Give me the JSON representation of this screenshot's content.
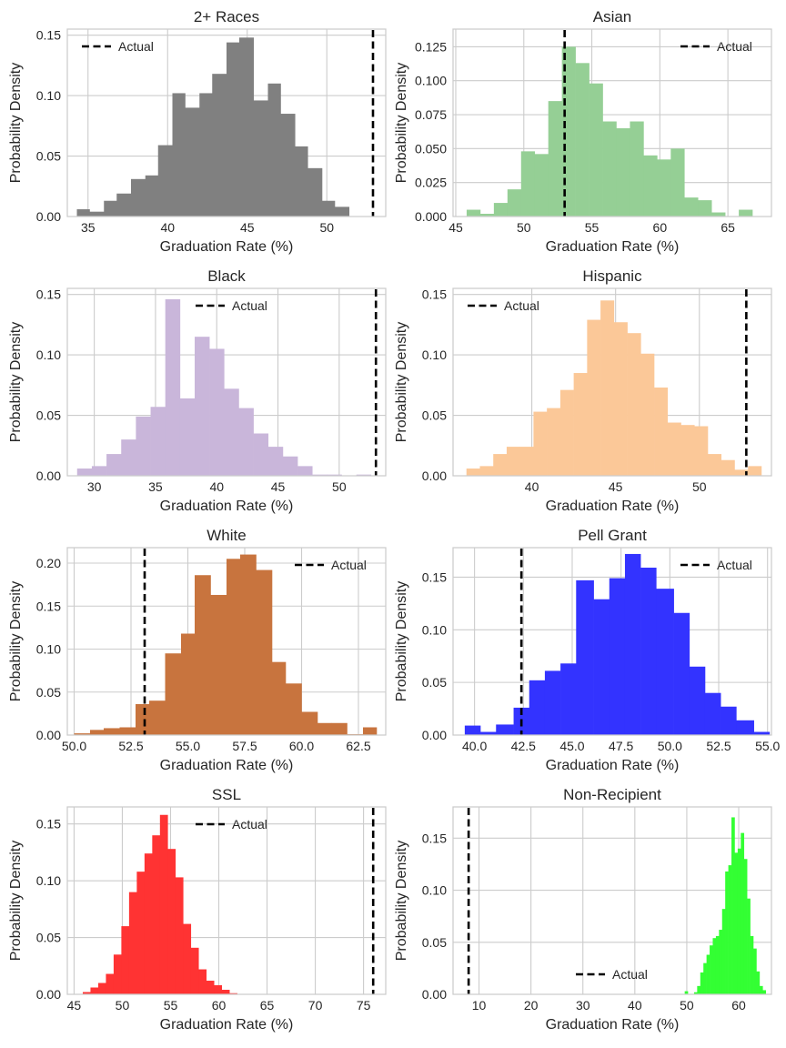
{
  "figure": {
    "legend_label": "Actual"
  },
  "chart_data": [
    {
      "type": "histogram",
      "title": "2+ Races",
      "xlabel": "Graduation Rate (%)",
      "ylabel": "Probability Density",
      "color": "#808080",
      "xlim": [
        33.7,
        53.7
      ],
      "ylim": [
        0,
        0.155
      ],
      "xticks": [
        35,
        40,
        45,
        50
      ],
      "yticks": [
        0.0,
        0.05,
        0.1,
        0.15
      ],
      "ytick_decimals": 2,
      "bins": [
        34.3,
        35.1,
        36.0,
        36.8,
        37.7,
        38.6,
        39.4,
        40.3,
        41.1,
        42.0,
        42.8,
        43.7,
        44.5,
        45.4,
        46.3,
        47.1,
        48.0,
        48.8,
        49.7,
        50.5,
        51.4
      ],
      "density": [
        0.006,
        0.004,
        0.013,
        0.019,
        0.031,
        0.034,
        0.059,
        0.102,
        0.09,
        0.102,
        0.118,
        0.144,
        0.148,
        0.096,
        0.11,
        0.085,
        0.058,
        0.04,
        0.013,
        0.008
      ],
      "actual": 52.9,
      "legend_position": "upper left"
    },
    {
      "type": "histogram",
      "title": "Asian",
      "xlabel": "Graduation Rate (%)",
      "ylabel": "Probability Density",
      "color": "#95cf95",
      "xlim": [
        44.8,
        68.2
      ],
      "ylim": [
        0,
        0.138
      ],
      "xticks": [
        45,
        50,
        55,
        60,
        65
      ],
      "yticks": [
        0.0,
        0.025,
        0.05,
        0.075,
        0.1,
        0.125
      ],
      "ytick_decimals": 3,
      "bins": [
        45.8,
        46.8,
        47.8,
        48.8,
        49.8,
        50.8,
        51.8,
        52.8,
        53.8,
        54.8,
        55.8,
        56.8,
        57.8,
        58.8,
        59.8,
        60.8,
        61.8,
        62.8,
        63.8,
        64.8,
        65.8,
        66.8
      ],
      "density": [
        0.005,
        0.002,
        0.01,
        0.02,
        0.048,
        0.046,
        0.085,
        0.125,
        0.113,
        0.098,
        0.07,
        0.065,
        0.07,
        0.045,
        0.042,
        0.05,
        0.014,
        0.012,
        0.003,
        0.0,
        0.005
      ],
      "actual": 53.0,
      "legend_position": "upper right"
    },
    {
      "type": "histogram",
      "title": "Black",
      "xlabel": "Graduation Rate (%)",
      "ylabel": "Probability Density",
      "color": "#c9b6da",
      "xlim": [
        27.8,
        53.8
      ],
      "ylim": [
        0,
        0.155
      ],
      "xticks": [
        30,
        35,
        40,
        45,
        50
      ],
      "yticks": [
        0.0,
        0.05,
        0.1,
        0.15
      ],
      "ytick_decimals": 2,
      "bins": [
        28.6,
        29.8,
        31.0,
        32.2,
        33.4,
        34.6,
        35.8,
        37.0,
        38.2,
        39.4,
        40.6,
        41.8,
        43.0,
        44.2,
        45.4,
        46.6,
        47.8,
        49.0,
        50.2,
        51.4,
        52.6
      ],
      "density": [
        0.006,
        0.008,
        0.018,
        0.03,
        0.049,
        0.057,
        0.146,
        0.064,
        0.115,
        0.105,
        0.072,
        0.056,
        0.035,
        0.024,
        0.016,
        0.008,
        0.001,
        0.001,
        0.0,
        0.001
      ],
      "actual": 53.0,
      "legend_position": "upper center"
    },
    {
      "type": "histogram",
      "title": "Hispanic",
      "xlabel": "Graduation Rate (%)",
      "ylabel": "Probability Density",
      "color": "#fbc898",
      "xlim": [
        35.3,
        54.3
      ],
      "ylim": [
        0,
        0.155
      ],
      "xticks": [
        40,
        45,
        50
      ],
      "yticks": [
        0.0,
        0.05,
        0.1,
        0.15
      ],
      "ytick_decimals": 2,
      "bins": [
        36.1,
        36.9,
        37.7,
        38.5,
        39.3,
        40.1,
        40.9,
        41.7,
        42.5,
        43.3,
        44.1,
        44.9,
        45.7,
        46.5,
        47.3,
        48.1,
        48.9,
        49.7,
        50.5,
        51.3,
        52.1,
        52.9,
        53.7
      ],
      "density": [
        0.006,
        0.008,
        0.018,
        0.024,
        0.024,
        0.053,
        0.056,
        0.071,
        0.085,
        0.129,
        0.145,
        0.127,
        0.118,
        0.101,
        0.073,
        0.044,
        0.042,
        0.041,
        0.018,
        0.013,
        0.005,
        0.008
      ],
      "actual": 52.8,
      "legend_position": "upper left"
    },
    {
      "type": "histogram",
      "title": "White",
      "xlabel": "Graduation Rate (%)",
      "ylabel": "Probability Density",
      "color": "#c8743e",
      "xlim": [
        49.7,
        63.7
      ],
      "ylim": [
        0,
        0.218
      ],
      "xticks": [
        50.0,
        52.5,
        55.0,
        57.5,
        60.0,
        62.5
      ],
      "yticks": [
        0.0,
        0.05,
        0.1,
        0.15,
        0.2
      ],
      "ytick_decimals": 2,
      "bins": [
        50.0,
        50.7,
        51.3,
        52.0,
        52.7,
        53.3,
        54.0,
        54.7,
        55.3,
        56.0,
        56.7,
        57.3,
        58.0,
        58.7,
        59.3,
        60.0,
        60.7,
        61.3,
        62.0,
        62.7,
        63.3
      ],
      "density": [
        0.002,
        0.006,
        0.008,
        0.009,
        0.036,
        0.04,
        0.095,
        0.118,
        0.186,
        0.163,
        0.205,
        0.21,
        0.192,
        0.085,
        0.06,
        0.027,
        0.014,
        0.014,
        0.001,
        0.009
      ],
      "actual": 53.1,
      "legend_position": "upper right"
    },
    {
      "type": "histogram",
      "title": "Pell Grant",
      "xlabel": "Graduation Rate (%)",
      "ylabel": "Probability Density",
      "color": "#3333ff",
      "xlim": [
        38.9,
        55.2
      ],
      "ylim": [
        0,
        0.178
      ],
      "xticks": [
        40.0,
        42.5,
        45.0,
        47.5,
        50.0,
        52.5,
        55.0
      ],
      "yticks": [
        0.0,
        0.05,
        0.1,
        0.15
      ],
      "ytick_decimals": 2,
      "bins": [
        39.5,
        40.3,
        41.1,
        42.0,
        42.8,
        43.6,
        44.4,
        45.2,
        46.1,
        46.9,
        47.7,
        48.5,
        49.3,
        50.2,
        51.0,
        51.8,
        52.6,
        53.4,
        54.3
      ],
      "density": [
        0.009,
        0.003,
        0.01,
        0.026,
        0.052,
        0.061,
        0.068,
        0.147,
        0.129,
        0.149,
        0.172,
        0.159,
        0.139,
        0.116,
        0.065,
        0.04,
        0.027,
        0.014,
        0.003
      ],
      "actual": 42.4,
      "legend_position": "upper right"
    },
    {
      "type": "histogram",
      "title": "SSL",
      "xlabel": "Graduation Rate (%)",
      "ylabel": "Probability Density",
      "color": "#ff3333",
      "xlim": [
        44.3,
        77.3
      ],
      "ylim": [
        0,
        0.165
      ],
      "xticks": [
        45,
        50,
        55,
        60,
        65,
        70,
        75
      ],
      "yticks": [
        0.0,
        0.05,
        0.1,
        0.15
      ],
      "ytick_decimals": 2,
      "bins": [
        45.9,
        46.7,
        47.5,
        48.3,
        49.1,
        49.9,
        50.7,
        51.5,
        52.3,
        53.1,
        53.9,
        54.7,
        55.5,
        56.3,
        57.1,
        57.9,
        58.7,
        59.5,
        60.3,
        61.1,
        61.9
      ],
      "density": [
        0.002,
        0.006,
        0.01,
        0.018,
        0.035,
        0.06,
        0.09,
        0.108,
        0.124,
        0.14,
        0.158,
        0.128,
        0.103,
        0.062,
        0.041,
        0.022,
        0.012,
        0.008,
        0.004,
        0.001
      ],
      "actual": 76.0,
      "legend_position": "upper center"
    },
    {
      "type": "histogram",
      "title": "Non-Recipient",
      "xlabel": "Graduation Rate (%)",
      "ylabel": "Probability Density",
      "color": "#33ff33",
      "xlim": [
        5.0,
        66.3
      ],
      "ylim": [
        0,
        0.18
      ],
      "xticks": [
        10,
        20,
        30,
        40,
        50,
        60
      ],
      "yticks": [
        0.0,
        0.05,
        0.1,
        0.15
      ],
      "ytick_decimals": 2,
      "bins": [
        49.6,
        50.2,
        50.8,
        51.4,
        52.0,
        52.6,
        53.2,
        53.8,
        54.4,
        55.0,
        55.6,
        56.2,
        56.8,
        57.4,
        58.0,
        58.6,
        59.2,
        59.8,
        60.4,
        61.0,
        61.6,
        62.2,
        62.8,
        63.4,
        64.0,
        64.6,
        65.2
      ],
      "density": [
        0.003,
        0.0,
        0.0,
        0.002,
        0.008,
        0.021,
        0.03,
        0.038,
        0.047,
        0.054,
        0.056,
        0.062,
        0.082,
        0.118,
        0.124,
        0.17,
        0.136,
        0.14,
        0.155,
        0.13,
        0.092,
        0.056,
        0.044,
        0.022,
        0.008,
        0.004
      ],
      "actual": 8.0,
      "legend_position": "lower center"
    }
  ]
}
